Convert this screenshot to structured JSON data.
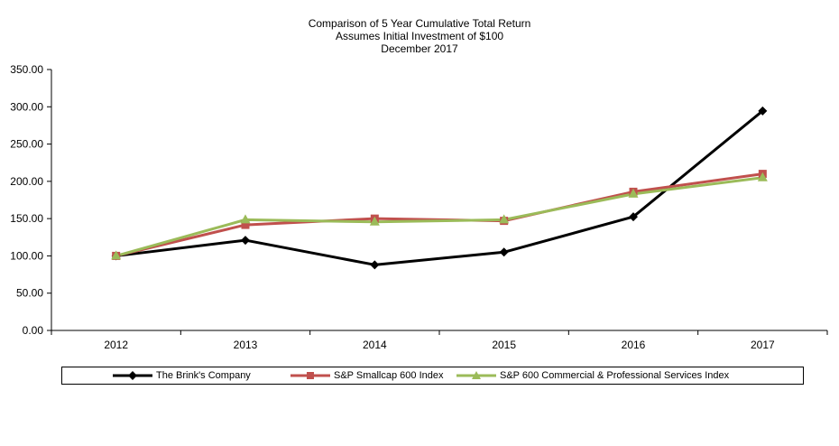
{
  "chart_data": {
    "type": "line",
    "title": [
      "Comparison of 5 Year Cumulative Total Return",
      "Assumes Initial Investment of $100",
      "December 2017"
    ],
    "categories": [
      "2012",
      "2013",
      "2014",
      "2015",
      "2016",
      "2017"
    ],
    "ylim": [
      0,
      350
    ],
    "yticks": [
      "0.00",
      "50.00",
      "100.00",
      "150.00",
      "200.00",
      "250.00",
      "300.00",
      "350.00"
    ],
    "grid": false,
    "legend_position": "bottom",
    "series": [
      {
        "name": "The Brink's Company",
        "values": [
          100,
          121,
          88,
          105,
          152.5,
          294.5
        ],
        "color": "#000000",
        "marker": "diamond"
      },
      {
        "name": "S&P Smallcap 600 Index",
        "values": [
          100,
          141.6,
          150,
          147,
          186,
          210
        ],
        "color": "#c0504d",
        "marker": "square"
      },
      {
        "name": "S&P 600 Commercial & Professional Services Index",
        "values": [
          100,
          148.5,
          145.6,
          148.5,
          183,
          205
        ],
        "color": "#9bbb59",
        "marker": "triangle"
      }
    ]
  }
}
